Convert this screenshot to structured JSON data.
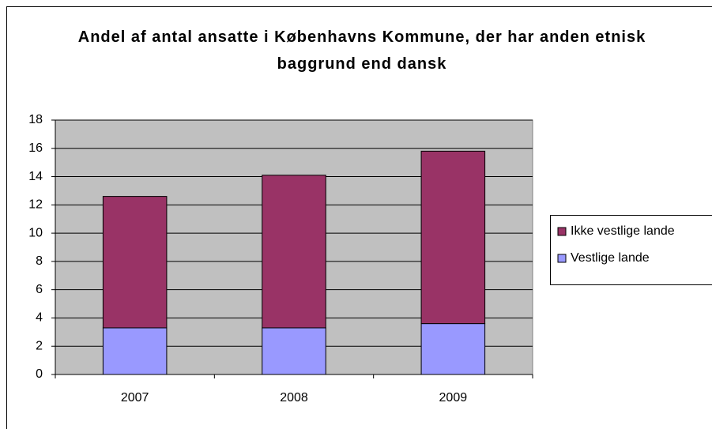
{
  "chart_data": {
    "type": "stacked-bar",
    "title": "Andel af antal ansatte i Københavns Kommune, der har anden etnisk baggrund end dansk",
    "categories": [
      "2007",
      "2008",
      "2009"
    ],
    "series": [
      {
        "name": "Vestlige lande",
        "color": "#9999ff",
        "values": [
          3.3,
          3.3,
          3.6
        ]
      },
      {
        "name": "Ikke vestlige lande",
        "color": "#993366",
        "values": [
          9.3,
          10.8,
          12.2
        ]
      }
    ],
    "ylim": [
      0,
      18
    ],
    "yticks": [
      0,
      2,
      4,
      6,
      8,
      10,
      12,
      14,
      16,
      18
    ],
    "grid": true,
    "legend": "right"
  }
}
